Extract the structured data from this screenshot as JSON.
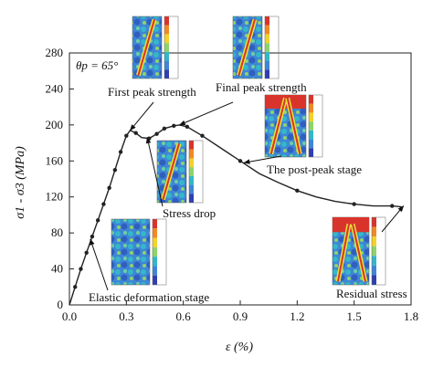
{
  "chart_data": {
    "type": "line",
    "xlabel": "ε (%)",
    "ylabel": "σ1 - σ3 (MPa)",
    "xlim": [
      0,
      1.8
    ],
    "ylim": [
      0,
      280
    ],
    "xticks": [
      "0.0",
      "0.3",
      "0.6",
      "0.9",
      "1.2",
      "1.5",
      "1.8"
    ],
    "yticks": [
      "0",
      "40",
      "80",
      "120",
      "160",
      "200",
      "240",
      "280"
    ],
    "angle_label": "θp = 65°",
    "grid": false,
    "series": [
      {
        "x": [
          0.0,
          0.03,
          0.06,
          0.09,
          0.12,
          0.15,
          0.18,
          0.21,
          0.24,
          0.27,
          0.3,
          0.32,
          0.35,
          0.38,
          0.42,
          0.46,
          0.5,
          0.55,
          0.58,
          0.62,
          0.66,
          0.7,
          0.8,
          0.9,
          1.0,
          1.1,
          1.2,
          1.3,
          1.4,
          1.5,
          1.6,
          1.7,
          1.75
        ],
        "y": [
          0,
          20,
          40,
          58,
          76,
          94,
          112,
          130,
          150,
          170,
          188,
          194,
          191,
          186,
          185,
          190,
          196,
          199,
          200,
          198,
          193,
          188,
          174,
          160,
          146,
          136,
          127,
          120,
          115,
          112,
          110,
          110,
          109
        ],
        "markers": [
          0.03,
          0.06,
          0.09,
          0.12,
          0.15,
          0.18,
          0.21,
          0.24,
          0.27,
          0.3,
          0.35,
          0.42,
          0.46,
          0.5,
          0.55,
          0.62,
          0.7,
          0.9,
          1.2,
          1.5,
          1.7
        ]
      }
    ],
    "annotations": [
      {
        "text": "First peak strength",
        "target": [
          0.32,
          194
        ]
      },
      {
        "text": "Final peak strength",
        "target": [
          0.58,
          200
        ]
      },
      {
        "text": "The post-peak stage",
        "target": [
          0.92,
          158
        ]
      },
      {
        "text": "Stress drop",
        "target": [
          0.41,
          186
        ]
      },
      {
        "text": "Elastic deformation stage",
        "target": [
          0.11,
          73
        ]
      },
      {
        "text": "Residual stress",
        "target": [
          1.76,
          110
        ]
      }
    ]
  },
  "colors": {
    "line": "#222222",
    "thumb_bg": "#2a6fc9"
  }
}
